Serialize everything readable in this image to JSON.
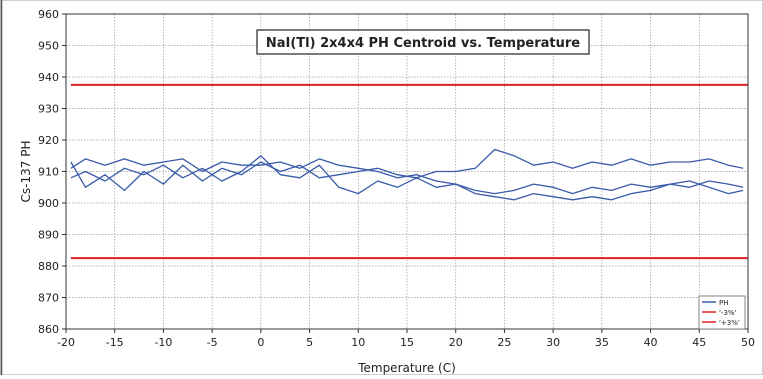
{
  "chart_data": {
    "type": "line",
    "title": "NaI(Tl) 2x4x4 PH Centroid vs. Temperature",
    "xlabel": "Temperature (C)",
    "ylabel": "Cs-137 PH",
    "xlim": [
      -20,
      50
    ],
    "ylim": [
      860,
      960
    ],
    "x_ticks": [
      "-20",
      "-15",
      "-10",
      "-5",
      "0",
      "5",
      "10",
      "15",
      "20",
      "25",
      "30",
      "35",
      "40",
      "45",
      "50"
    ],
    "y_ticks": [
      "860",
      "870",
      "880",
      "890",
      "900",
      "910",
      "920",
      "930",
      "940",
      "950",
      "960"
    ],
    "grid": true,
    "legend_position": "bottom-right",
    "series": [
      {
        "name": "PH",
        "color": "#3a5ba9",
        "lines": [
          {
            "x": [
              -19.5,
              -18,
              -16,
              -14,
              -12,
              -10,
              -8,
              -6,
              -4,
              -2,
              0,
              2,
              4,
              6,
              8,
              10,
              12,
              14,
              16,
              18,
              20,
              22,
              24,
              26,
              28,
              30,
              32,
              34,
              36,
              38,
              40,
              42,
              44,
              46,
              48,
              49.5
            ],
            "y": [
              913,
              905,
              909,
              904,
              910,
              906,
              912,
              907,
              911,
              909,
              913,
              910,
              912,
              908,
              909,
              910,
              911,
              909,
              908,
              910,
              910,
              911,
              917,
              915,
              912,
              913,
              911,
              913,
              912,
              914,
              912,
              913,
              913,
              914,
              912,
              911
            ]
          },
          {
            "x": [
              -19.5,
              -18,
              -16,
              -14,
              -12,
              -10,
              -8,
              -6,
              -4,
              -2,
              0,
              2,
              4,
              6,
              8,
              10,
              12,
              14,
              16,
              18,
              20,
              22,
              24,
              26,
              28,
              30,
              32,
              34,
              36,
              38,
              40,
              42,
              44,
              46,
              48,
              49.5
            ],
            "y": [
              911,
              914,
              912,
              914,
              912,
              913,
              914,
              910,
              913,
              912,
              912,
              913,
              911,
              914,
              912,
              911,
              910,
              908,
              909,
              907,
              906,
              904,
              903,
              904,
              906,
              905,
              903,
              905,
              904,
              906,
              905,
              906,
              905,
              907,
              906,
              905
            ]
          },
          {
            "x": [
              -19.5,
              -18,
              -16,
              -14,
              -12,
              -10,
              -8,
              -6,
              -4,
              -2,
              0,
              2,
              4,
              6,
              8,
              10,
              12,
              14,
              16,
              18,
              20,
              22,
              24,
              26,
              28,
              30,
              32,
              34,
              36,
              38,
              40,
              42,
              44,
              46,
              48,
              49.5
            ],
            "y": [
              908,
              910,
              907,
              911,
              909,
              912,
              908,
              911,
              907,
              910,
              915,
              909,
              908,
              912,
              905,
              903,
              907,
              905,
              908,
              905,
              906,
              903,
              902,
              901,
              903,
              902,
              901,
              902,
              901,
              903,
              904,
              906,
              907,
              905,
              903,
              904
            ]
          }
        ]
      },
      {
        "name": "'-3%'",
        "color": "#e02020",
        "x": [
          -19.5,
          50
        ],
        "y": [
          882.5,
          882.5
        ]
      },
      {
        "name": "'+3%'",
        "color": "#e02020",
        "x": [
          -19.5,
          50
        ],
        "y": [
          937.5,
          937.5
        ]
      }
    ]
  }
}
